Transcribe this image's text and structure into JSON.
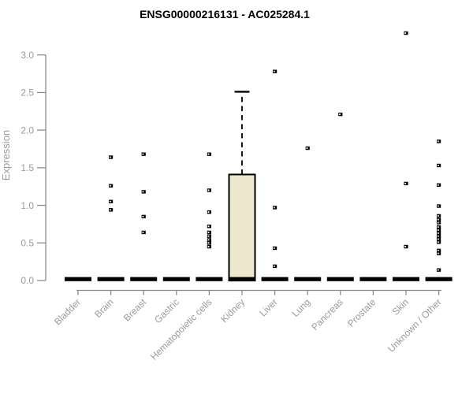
{
  "chart_data": {
    "type": "boxplot",
    "title": "ENSG00000216131 - AC025284.1",
    "xlabel": "",
    "ylabel": "Expression",
    "ylim": [
      0,
      3.3
    ],
    "yticks": [
      0.0,
      0.5,
      1.0,
      1.5,
      2.0,
      2.5,
      3.0
    ],
    "grid": false,
    "legend": "none",
    "categories": [
      "Bladder",
      "Brain",
      "Breast",
      "Gastric",
      "Hematopoietic cells",
      "Kidney",
      "Liver",
      "Lung",
      "Pancreas",
      "Prostate",
      "Skin",
      "Unknown / Other"
    ],
    "series": [
      {
        "category": "Bladder",
        "box": {
          "median": 0.0,
          "q1": 0.0,
          "q3": 0.0,
          "whisker_low": 0.0,
          "whisker_high": 0.0
        },
        "points": []
      },
      {
        "category": "Brain",
        "box": {
          "median": 0.0,
          "q1": 0.0,
          "q3": 0.0,
          "whisker_low": 0.0,
          "whisker_high": 0.0
        },
        "points": [
          1.64,
          1.26,
          1.05,
          0.94
        ]
      },
      {
        "category": "Breast",
        "box": {
          "median": 0.0,
          "q1": 0.0,
          "q3": 0.0,
          "whisker_low": 0.0,
          "whisker_high": 0.0
        },
        "points": [
          1.68,
          1.18,
          0.85,
          0.64
        ]
      },
      {
        "category": "Gastric",
        "box": {
          "median": 0.0,
          "q1": 0.0,
          "q3": 0.0,
          "whisker_low": 0.0,
          "whisker_high": 0.0
        },
        "points": []
      },
      {
        "category": "Hematopoietic cells",
        "box": {
          "median": 0.0,
          "q1": 0.0,
          "q3": 0.0,
          "whisker_low": 0.0,
          "whisker_high": 0.0
        },
        "points": [
          1.68,
          1.2,
          0.91,
          0.72,
          0.64,
          0.59,
          0.54,
          0.5,
          0.45
        ]
      },
      {
        "category": "Kidney",
        "box": {
          "median": 0.02,
          "q1": 0.02,
          "q3": 1.41,
          "whisker_low": 0.02,
          "whisker_high": 2.51
        },
        "points": []
      },
      {
        "category": "Liver",
        "box": {
          "median": 0.0,
          "q1": 0.0,
          "q3": 0.0,
          "whisker_low": 0.0,
          "whisker_high": 0.0
        },
        "points": [
          2.78,
          0.97,
          0.43,
          0.19
        ]
      },
      {
        "category": "Lung",
        "box": {
          "median": 0.0,
          "q1": 0.0,
          "q3": 0.0,
          "whisker_low": 0.0,
          "whisker_high": 0.0
        },
        "points": [
          1.76
        ]
      },
      {
        "category": "Pancreas",
        "box": {
          "median": 0.0,
          "q1": 0.0,
          "q3": 0.0,
          "whisker_low": 0.0,
          "whisker_high": 0.0
        },
        "points": [
          2.21
        ]
      },
      {
        "category": "Prostate",
        "box": {
          "median": 0.0,
          "q1": 0.0,
          "q3": 0.0,
          "whisker_low": 0.0,
          "whisker_high": 0.0
        },
        "points": []
      },
      {
        "category": "Skin",
        "box": {
          "median": 0.0,
          "q1": 0.0,
          "q3": 0.0,
          "whisker_low": 0.0,
          "whisker_high": 0.0
        },
        "points": [
          3.29,
          1.29,
          0.45
        ]
      },
      {
        "category": "Unknown / Other",
        "box": {
          "median": 0.0,
          "q1": 0.0,
          "q3": 0.0,
          "whisker_low": 0.0,
          "whisker_high": 0.0
        },
        "points": [
          1.85,
          1.53,
          1.27,
          0.99,
          0.86,
          0.81,
          0.77,
          0.71,
          0.67,
          0.63,
          0.59,
          0.55,
          0.51,
          0.4,
          0.36,
          0.14
        ]
      }
    ],
    "colors": {
      "box_fill": "#ede8ce",
      "box_border": "#000000",
      "median_bar": "#000000",
      "point": "#000000",
      "axis_line": "#8c8c8c",
      "tick_text": "#9b9b9b",
      "title_text": "#000000",
      "background": "#ffffff"
    }
  }
}
